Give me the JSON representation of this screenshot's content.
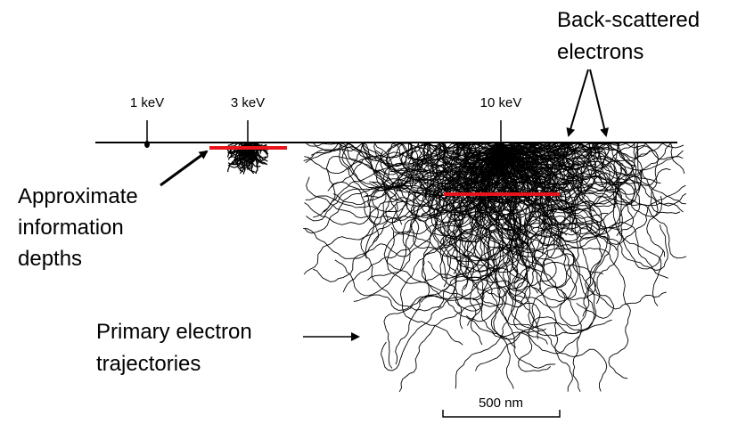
{
  "beam_labels": [
    "1 keV",
    "3 keV",
    "10 keV"
  ],
  "backscatter_label": [
    "Back-scattered",
    "electrons"
  ],
  "depth_label": [
    "Approximate",
    "information",
    "depths"
  ],
  "trajectory_label": [
    "Primary electron",
    "trajectories"
  ],
  "scale_label": "500 nm"
}
